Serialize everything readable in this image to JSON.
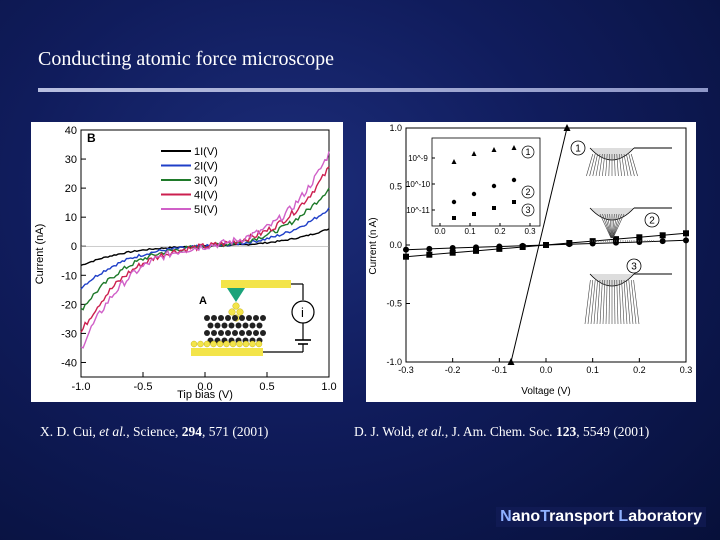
{
  "slide": {
    "title": "Conducting atomic force microscope",
    "lab_name": {
      "n": "N",
      "ano": "ano",
      "t": "T",
      "ransport": "ransport ",
      "l": "L",
      "aboratory": "aboratory"
    }
  },
  "citations": {
    "left": {
      "authors": "X. D. Cui, ",
      "etal": "et al.",
      "journal": ", Science, ",
      "volume": "294",
      "rest": ", 571 (2001)"
    },
    "right": {
      "authors": "D. J. Wold, ",
      "etal": "et al.",
      "journal": ", J. Am. Chem. Soc. ",
      "volume": "123",
      "rest": ", 5549 (2001)"
    }
  },
  "chart_data": [
    {
      "type": "line",
      "panel_label": "B",
      "inset_label": "A",
      "inset_symbol": "i",
      "xlabel": "Tip bias (V)",
      "ylabel": "Current (nA)",
      "xlim": [
        -1.0,
        1.0
      ],
      "ylim": [
        -45,
        40
      ],
      "xticks": [
        "-1.0",
        "-0.5",
        "0.0",
        "0.5",
        "1.0"
      ],
      "yticks": [
        "40",
        "30",
        "20",
        "10",
        "0",
        "-10",
        "-20",
        "-30",
        "-40"
      ],
      "legend_position": "top-right",
      "series": [
        {
          "name": "1I(V)",
          "color": "#000000",
          "amplitude": 6
        },
        {
          "name": "2I(V)",
          "color": "#1f3fc8",
          "amplitude": 13
        },
        {
          "name": "3I(V)",
          "color": "#1f7a2a",
          "amplitude": 20
        },
        {
          "name": "4I(V)",
          "color": "#cc1f4f",
          "amplitude": 27
        },
        {
          "name": "5I(V)",
          "color": "#d060c8",
          "amplitude": 32
        }
      ]
    },
    {
      "type": "line",
      "xlabel": "Voltage (V)",
      "ylabel": "Current (n A)",
      "xlim": [
        -0.3,
        0.3
      ],
      "ylim": [
        -1.0,
        1.0
      ],
      "xticks": [
        "-0.3",
        "-0.2",
        "-0.1",
        "0.0",
        "0.1",
        "0.2",
        "0.3"
      ],
      "yticks": [
        "1.0",
        "0.5",
        "0.0",
        "-0.5",
        "-1.0"
      ],
      "markers": [
        "1",
        "2",
        "3"
      ],
      "series": [
        {
          "name": "1",
          "x": [
            -0.075,
            0.045
          ],
          "y": [
            -1.0,
            1.0
          ]
        },
        {
          "name": "2",
          "x": [
            -0.3,
            -0.25,
            -0.2,
            -0.15,
            -0.1,
            -0.05,
            0.0,
            0.05,
            0.1,
            0.15,
            0.2,
            0.25,
            0.3
          ],
          "y": [
            -0.04,
            -0.033,
            -0.026,
            -0.02,
            -0.013,
            -0.007,
            0.0,
            0.007,
            0.013,
            0.02,
            0.026,
            0.033,
            0.04
          ]
        },
        {
          "name": "3",
          "x": [
            -0.3,
            -0.25,
            -0.2,
            -0.15,
            -0.1,
            -0.05,
            0.0,
            0.05,
            0.1,
            0.15,
            0.2,
            0.25,
            0.3
          ],
          "y": [
            -0.1,
            -0.083,
            -0.066,
            -0.05,
            -0.033,
            -0.017,
            0.0,
            0.017,
            0.033,
            0.05,
            0.066,
            0.083,
            0.1
          ]
        }
      ],
      "inset": {
        "xticks": [
          "0.0",
          "0.1",
          "0.2",
          "0.3"
        ],
        "yticks": [
          "10^-9",
          "10^-10",
          "10^-11"
        ],
        "markers": [
          "1",
          "2",
          "3"
        ]
      }
    }
  ]
}
